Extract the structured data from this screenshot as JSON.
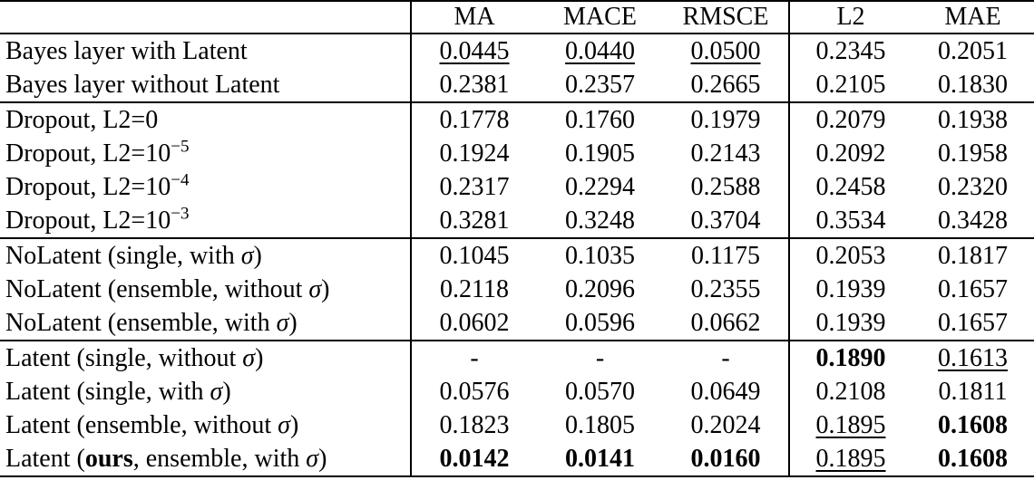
{
  "colors": {
    "background": "#ffffff",
    "text": "#000000",
    "rule": "#000000"
  },
  "table": {
    "columns": [
      "",
      "MA",
      "MACE",
      "RMSCE",
      "L2",
      "MAE"
    ],
    "rows": [
      {
        "sep": false,
        "label": [
          {
            "t": "Bayes layer with Latent"
          }
        ],
        "cells": [
          {
            "v": "0.0445",
            "s": "u"
          },
          {
            "v": "0.0440",
            "s": "u"
          },
          {
            "v": "0.0500",
            "s": "u"
          },
          {
            "v": "0.2345"
          },
          {
            "v": "0.2051"
          }
        ]
      },
      {
        "sep": false,
        "label": [
          {
            "t": "Bayes layer without Latent"
          }
        ],
        "cells": [
          {
            "v": "0.2381"
          },
          {
            "v": "0.2357"
          },
          {
            "v": "0.2665"
          },
          {
            "v": "0.2105"
          },
          {
            "v": "0.1830"
          }
        ]
      },
      {
        "sep": true,
        "label": [
          {
            "t": "Dropout, L2=0"
          }
        ],
        "cells": [
          {
            "v": "0.1778"
          },
          {
            "v": "0.1760"
          },
          {
            "v": "0.1979"
          },
          {
            "v": "0.2079"
          },
          {
            "v": "0.1938"
          }
        ]
      },
      {
        "sep": false,
        "label": [
          {
            "t": "Dropout, L2=10"
          },
          {
            "t": "−5",
            "sup": true
          }
        ],
        "cells": [
          {
            "v": "0.1924"
          },
          {
            "v": "0.1905"
          },
          {
            "v": "0.2143"
          },
          {
            "v": "0.2092"
          },
          {
            "v": "0.1958"
          }
        ]
      },
      {
        "sep": false,
        "label": [
          {
            "t": "Dropout, L2=10"
          },
          {
            "t": "−4",
            "sup": true
          }
        ],
        "cells": [
          {
            "v": "0.2317"
          },
          {
            "v": "0.2294"
          },
          {
            "v": "0.2588"
          },
          {
            "v": "0.2458"
          },
          {
            "v": "0.2320"
          }
        ]
      },
      {
        "sep": false,
        "label": [
          {
            "t": "Dropout, L2=10"
          },
          {
            "t": "−3",
            "sup": true
          }
        ],
        "cells": [
          {
            "v": "0.3281"
          },
          {
            "v": "0.3248"
          },
          {
            "v": "0.3704"
          },
          {
            "v": "0.3534"
          },
          {
            "v": "0.3428"
          }
        ]
      },
      {
        "sep": true,
        "label": [
          {
            "t": "NoLatent (single, with "
          },
          {
            "t": "σ",
            "i": true
          },
          {
            "t": ")"
          }
        ],
        "cells": [
          {
            "v": "0.1045"
          },
          {
            "v": "0.1035"
          },
          {
            "v": "0.1175"
          },
          {
            "v": "0.2053"
          },
          {
            "v": "0.1817"
          }
        ]
      },
      {
        "sep": false,
        "label": [
          {
            "t": "NoLatent (ensemble, without "
          },
          {
            "t": "σ",
            "i": true
          },
          {
            "t": ")"
          }
        ],
        "cells": [
          {
            "v": "0.2118"
          },
          {
            "v": "0.2096"
          },
          {
            "v": "0.2355"
          },
          {
            "v": "0.1939"
          },
          {
            "v": "0.1657"
          }
        ]
      },
      {
        "sep": false,
        "label": [
          {
            "t": "NoLatent (ensemble, with "
          },
          {
            "t": "σ",
            "i": true
          },
          {
            "t": ")"
          }
        ],
        "cells": [
          {
            "v": "0.0602"
          },
          {
            "v": "0.0596"
          },
          {
            "v": "0.0662"
          },
          {
            "v": "0.1939"
          },
          {
            "v": "0.1657"
          }
        ]
      },
      {
        "sep": true,
        "label": [
          {
            "t": "Latent (single, without "
          },
          {
            "t": "σ",
            "i": true
          },
          {
            "t": ")"
          }
        ],
        "cells": [
          {
            "v": "-"
          },
          {
            "v": "-"
          },
          {
            "v": "-"
          },
          {
            "v": "0.1890",
            "s": "b"
          },
          {
            "v": "0.1613",
            "s": "u"
          }
        ]
      },
      {
        "sep": false,
        "label": [
          {
            "t": "Latent (single, with "
          },
          {
            "t": "σ",
            "i": true
          },
          {
            "t": ")"
          }
        ],
        "cells": [
          {
            "v": "0.0576"
          },
          {
            "v": "0.0570"
          },
          {
            "v": "0.0649"
          },
          {
            "v": "0.2108"
          },
          {
            "v": "0.1811"
          }
        ]
      },
      {
        "sep": false,
        "label": [
          {
            "t": "Latent (ensemble, without "
          },
          {
            "t": "σ",
            "i": true
          },
          {
            "t": ")"
          }
        ],
        "cells": [
          {
            "v": "0.1823"
          },
          {
            "v": "0.1805"
          },
          {
            "v": "0.2024"
          },
          {
            "v": "0.1895",
            "s": "u"
          },
          {
            "v": "0.1608",
            "s": "b"
          }
        ]
      },
      {
        "sep": false,
        "label": [
          {
            "t": "Latent ("
          },
          {
            "t": "ours",
            "b": true
          },
          {
            "t": ", ensemble, with "
          },
          {
            "t": "σ",
            "i": true
          },
          {
            "t": ")"
          }
        ],
        "cells": [
          {
            "v": "0.0142",
            "s": "b"
          },
          {
            "v": "0.0141",
            "s": "b"
          },
          {
            "v": "0.0160",
            "s": "b"
          },
          {
            "v": "0.1895",
            "s": "u"
          },
          {
            "v": "0.1608",
            "s": "b"
          }
        ]
      }
    ]
  }
}
